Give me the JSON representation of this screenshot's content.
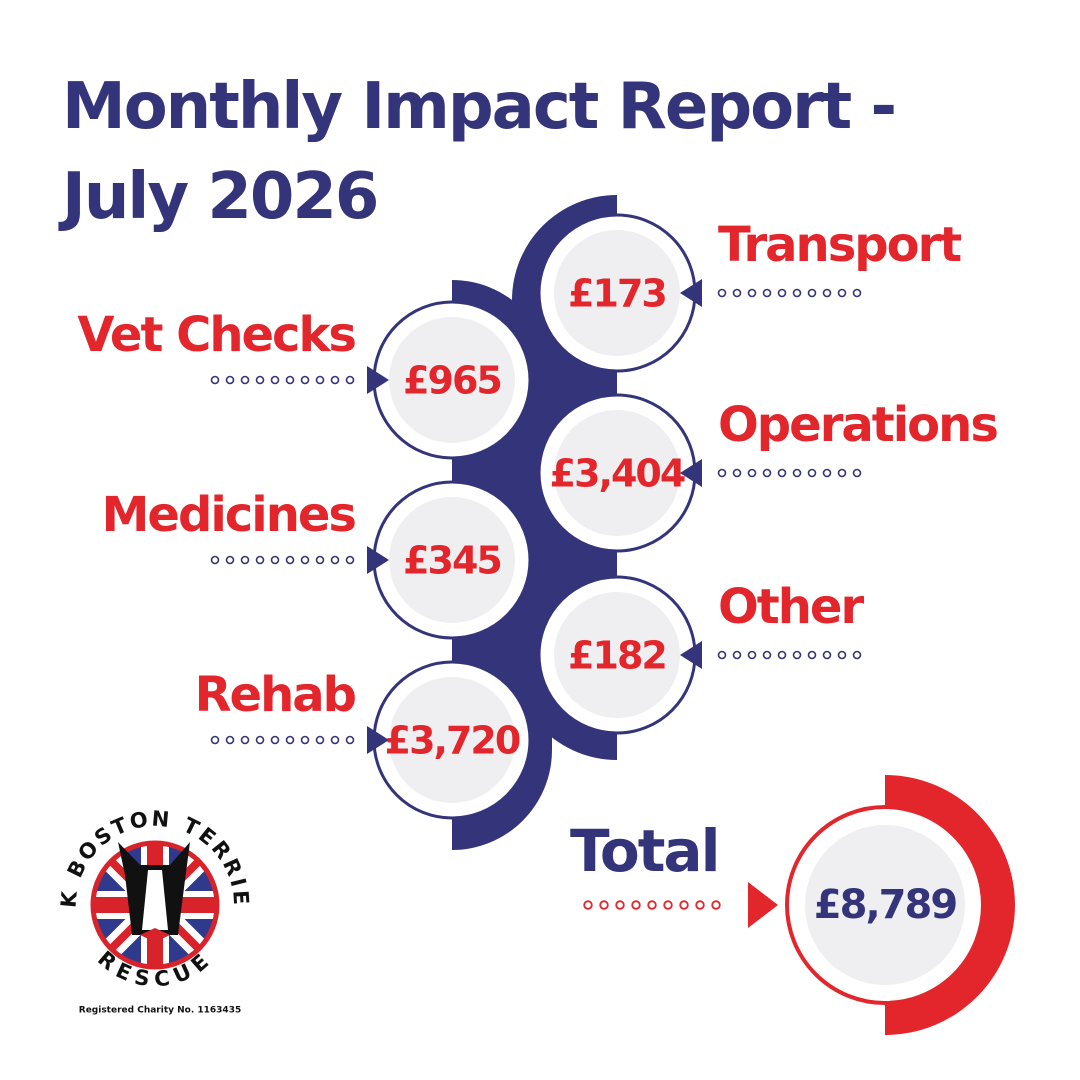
{
  "title": "Monthly Impact Report - July 2026",
  "items": [
    {
      "label": "Transport",
      "amount": "£173"
    },
    {
      "label": "Vet Checks",
      "amount": "£965"
    },
    {
      "label": "Operations",
      "amount": "£3,404"
    },
    {
      "label": "Medicines",
      "amount": "£345"
    },
    {
      "label": "Other",
      "amount": "£182"
    },
    {
      "label": "Rehab",
      "amount": "£3,720"
    }
  ],
  "total": {
    "label": "Total",
    "amount": "£8,789"
  },
  "logo": {
    "top_text": "UK BOSTON TERRIER",
    "bottom_text": "RESCUE",
    "charity": "Registered Charity No. 1163435"
  }
}
